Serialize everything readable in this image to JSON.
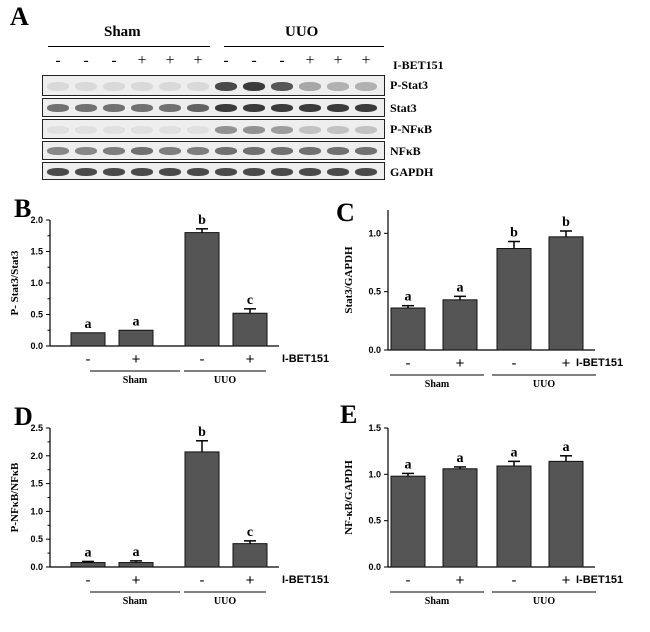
{
  "panel_a": {
    "letter": "A",
    "groups": [
      "Sham",
      "UUO"
    ],
    "treatment_row": [
      "-",
      "-",
      "-",
      "+",
      "+",
      "+",
      "-",
      "-",
      "-",
      "+",
      "+",
      "+"
    ],
    "treatment_label": "I-BET151",
    "blots": [
      {
        "protein": "P-Stat3",
        "intensity": [
          0.15,
          0.15,
          0.15,
          0.15,
          0.15,
          0.15,
          0.85,
          0.9,
          0.8,
          0.45,
          0.4,
          0.4
        ]
      },
      {
        "protein": "Stat3",
        "intensity": [
          0.7,
          0.7,
          0.7,
          0.7,
          0.7,
          0.75,
          0.9,
          0.9,
          0.9,
          0.9,
          0.9,
          0.9
        ]
      },
      {
        "protein": "P-NFκB",
        "intensity": [
          0.1,
          0.1,
          0.1,
          0.1,
          0.1,
          0.1,
          0.55,
          0.55,
          0.5,
          0.3,
          0.3,
          0.3
        ]
      },
      {
        "protein": "NFκB",
        "intensity": [
          0.6,
          0.6,
          0.65,
          0.7,
          0.65,
          0.65,
          0.7,
          0.7,
          0.7,
          0.7,
          0.7,
          0.7
        ]
      },
      {
        "protein": "GAPDH",
        "intensity": [
          0.85,
          0.85,
          0.85,
          0.85,
          0.85,
          0.85,
          0.85,
          0.85,
          0.85,
          0.85,
          0.85,
          0.85
        ]
      }
    ]
  },
  "chart_data": [
    {
      "panel": "B",
      "type": "bar",
      "ylabel": "P- Stat3/Stat3",
      "ylim": [
        0,
        2.0
      ],
      "yticks": [
        "0.0",
        "0.5",
        "1.0",
        "1.5",
        "2.0"
      ],
      "minor_ticks": true,
      "categories": [
        "Sham -",
        "Sham +",
        "UUO -",
        "UUO +"
      ],
      "values": [
        0.21,
        0.25,
        1.8,
        0.52
      ],
      "errors": [
        0.0,
        0.0,
        0.06,
        0.07
      ],
      "letters": [
        "a",
        "a",
        "b",
        "c"
      ],
      "signs": [
        "-",
        "+",
        "-",
        "+"
      ],
      "treatment": "I-BET151",
      "groups": [
        "Sham",
        "UUO"
      ]
    },
    {
      "panel": "C",
      "type": "bar",
      "ylabel": "Stat3/GAPDH",
      "ylim": [
        0,
        1.2
      ],
      "yticks": [
        "0.0",
        "0.5",
        "1.0"
      ],
      "minor_ticks": false,
      "categories": [
        "Sham -",
        "Sham +",
        "UUO -",
        "UUO +"
      ],
      "values": [
        0.36,
        0.43,
        0.87,
        0.97
      ],
      "errors": [
        0.02,
        0.03,
        0.06,
        0.05
      ],
      "letters": [
        "a",
        "a",
        "b",
        "b"
      ],
      "signs": [
        "-",
        "+",
        "-",
        "+"
      ],
      "treatment": "I-BET151",
      "groups": [
        "Sham",
        "UUO"
      ]
    },
    {
      "panel": "D",
      "type": "bar",
      "ylabel": "P-NFκB/NFκB",
      "ylim": [
        0,
        2.5
      ],
      "yticks": [
        "0.0",
        "0.5",
        "1.0",
        "1.5",
        "2.0",
        "2.5"
      ],
      "minor_ticks": true,
      "categories": [
        "Sham -",
        "Sham +",
        "UUO -",
        "UUO +"
      ],
      "values": [
        0.08,
        0.08,
        2.07,
        0.42
      ],
      "errors": [
        0.02,
        0.03,
        0.2,
        0.05
      ],
      "letters": [
        "a",
        "a",
        "b",
        "c"
      ],
      "signs": [
        "-",
        "+",
        "-",
        "+"
      ],
      "treatment": "I-BET151",
      "groups": [
        "Sham",
        "UUO"
      ]
    },
    {
      "panel": "E",
      "type": "bar",
      "ylabel": "NF-κB/GAPDH",
      "ylim": [
        0,
        1.5
      ],
      "yticks": [
        "0.0",
        "0.5",
        "1.0",
        "1.5"
      ],
      "minor_ticks": false,
      "categories": [
        "Sham -",
        "Sham +",
        "UUO -",
        "UUO +"
      ],
      "values": [
        0.98,
        1.06,
        1.09,
        1.14
      ],
      "errors": [
        0.03,
        0.02,
        0.05,
        0.06
      ],
      "letters": [
        "a",
        "a",
        "a",
        "a"
      ],
      "signs": [
        "-",
        "+",
        "-",
        "+"
      ],
      "treatment": "I-BET151",
      "groups": [
        "Sham",
        "UUO"
      ]
    }
  ]
}
